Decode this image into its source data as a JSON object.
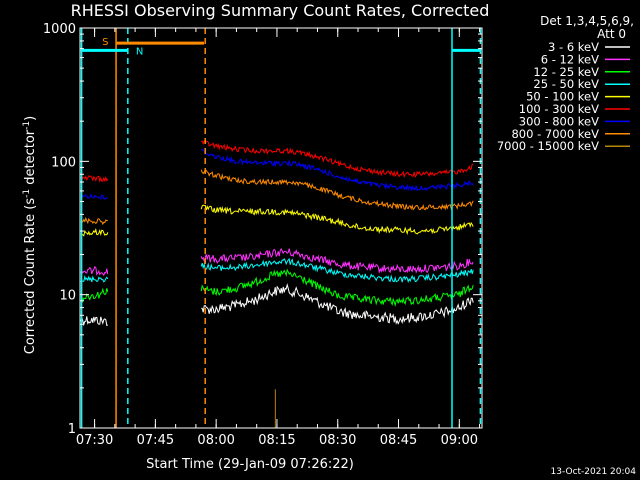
{
  "chart_data": {
    "type": "line",
    "title": "RHESSI Observing Summary Count Rates, Corrected",
    "xlabel": "Start Time (29-Jan-09 07:26:22)",
    "ylabel_main": "Corrected Count Rate (s",
    "ylabel_sup1": "-1",
    "ylabel_mid": " detector",
    "ylabel_sup2": "-1",
    "ylabel_end": ")",
    "yscale": "log",
    "ylim": [
      1,
      1000
    ],
    "xlim_min": [
      446.4,
      545.6
    ],
    "x_ticks": [
      {
        "label": "07:30",
        "min": 450
      },
      {
        "label": "07:45",
        "min": 465
      },
      {
        "label": "08:00",
        "min": 480
      },
      {
        "label": "08:15",
        "min": 495
      },
      {
        "label": "08:30",
        "min": 510
      },
      {
        "label": "08:45",
        "min": 525
      },
      {
        "label": "09:00",
        "min": 540
      }
    ],
    "y_ticks": [
      {
        "label": "1",
        "value": 1
      },
      {
        "label": "10",
        "value": 10
      },
      {
        "label": "100",
        "value": 100
      },
      {
        "label": "1000",
        "value": 1000
      }
    ],
    "legend_header": [
      "Det 1,3,4,5,6,9,",
      "Att 0"
    ],
    "series": [
      {
        "name": "3 - 6 keV",
        "color": "#ffffff",
        "seg1": {
          "x": [
            446.6,
            449,
            451,
            453.5
          ],
          "y": [
            6.5,
            6.5,
            6.4,
            6.3
          ]
        },
        "seg2": {
          "x": [
            476.3,
            480,
            485,
            490,
            494,
            497,
            500,
            505,
            510,
            515,
            520,
            525,
            530,
            535,
            540,
            543.5
          ],
          "y": [
            7.8,
            7.8,
            8.3,
            9.2,
            10.5,
            11,
            10.3,
            8.8,
            7.5,
            7,
            6.8,
            6.6,
            6.8,
            7.2,
            7.9,
            9.5
          ]
        }
      },
      {
        "name": "6 - 12 keV",
        "color": "#ff33ff",
        "seg1": {
          "x": [
            446.6,
            449,
            451,
            453.5
          ],
          "y": [
            15,
            15,
            15.2,
            14.8
          ]
        },
        "seg2": {
          "x": [
            476.3,
            480,
            485,
            490,
            494,
            497,
            500,
            505,
            510,
            515,
            520,
            525,
            530,
            535,
            540,
            543.5
          ],
          "y": [
            19,
            18.5,
            18.8,
            19.2,
            20.5,
            21,
            20.3,
            18.5,
            17,
            16.2,
            15.8,
            15.5,
            15.6,
            16,
            16.5,
            18
          ]
        }
      },
      {
        "name": "12 - 25 keV",
        "color": "#00ff00",
        "seg1": {
          "x": [
            446.6,
            449,
            451,
            453.5
          ],
          "y": [
            9.5,
            9.8,
            10,
            11
          ]
        },
        "seg2": {
          "x": [
            476.3,
            480,
            485,
            490,
            494,
            497,
            500,
            505,
            510,
            515,
            520,
            525,
            530,
            535,
            540,
            543.5
          ],
          "y": [
            11,
            10.5,
            11.2,
            12.5,
            14,
            14.5,
            13.7,
            11.5,
            9.8,
            9.3,
            9,
            8.9,
            9.1,
            9.5,
            10,
            12
          ]
        }
      },
      {
        "name": "25 - 50 keV",
        "color": "#00ffff",
        "seg1": {
          "x": [
            446.6,
            449,
            451,
            453.5
          ],
          "y": [
            13,
            13,
            13.2,
            13
          ]
        },
        "seg2": {
          "x": [
            476.3,
            480,
            485,
            490,
            494,
            497,
            500,
            505,
            510,
            515,
            520,
            525,
            530,
            535,
            540,
            543.5
          ],
          "y": [
            16.5,
            15.8,
            16,
            16.7,
            17.5,
            17.8,
            17.2,
            15.8,
            14.5,
            13.8,
            13.4,
            13,
            13.2,
            13.6,
            14.2,
            15
          ]
        }
      },
      {
        "name": "50 - 100 keV",
        "color": "#ffff00",
        "seg1": {
          "x": [
            446.6,
            449,
            451,
            453.5
          ],
          "y": [
            29,
            29,
            29.5,
            29
          ]
        },
        "seg2": {
          "x": [
            476.3,
            480,
            485,
            490,
            494,
            497,
            500,
            505,
            510,
            515,
            520,
            525,
            530,
            535,
            540,
            543.5
          ],
          "y": [
            45,
            43,
            42,
            42,
            42,
            41.5,
            40.5,
            38,
            35,
            32,
            31,
            30.5,
            30,
            30.5,
            32,
            34
          ]
        }
      },
      {
        "name": "100 - 300 keV",
        "color": "#ff0000",
        "seg1": {
          "x": [
            446.6,
            449,
            451,
            453.5
          ],
          "y": [
            75,
            75,
            74,
            73
          ]
        },
        "seg2": {
          "x": [
            476.3,
            480,
            485,
            490,
            494,
            497,
            500,
            505,
            510,
            515,
            520,
            525,
            530,
            535,
            540,
            543.5
          ],
          "y": [
            140,
            130,
            123,
            120,
            120,
            120,
            117,
            108,
            96,
            88,
            83,
            80,
            80,
            81,
            84,
            92
          ]
        }
      },
      {
        "name": "300 - 800 keV",
        "color": "#0000ff",
        "seg1": {
          "x": [
            446.6,
            449,
            451,
            453.5
          ],
          "y": [
            55,
            55,
            54,
            53
          ]
        },
        "seg2": {
          "x": [
            476.3,
            480,
            485,
            490,
            494,
            497,
            500,
            505,
            510,
            515,
            520,
            525,
            530,
            535,
            540,
            543.5
          ],
          "y": [
            120,
            108,
            100,
            97,
            97,
            97,
            95,
            87,
            77,
            70,
            66,
            64,
            63,
            64,
            66,
            70
          ]
        }
      },
      {
        "name": "800 - 7000 keV",
        "color": "#ff8c00",
        "seg1": {
          "x": [
            446.6,
            449,
            451,
            453.5
          ],
          "y": [
            36,
            36,
            35.5,
            35
          ]
        },
        "seg2": {
          "x": [
            476.3,
            480,
            485,
            490,
            494,
            497,
            500,
            505,
            510,
            515,
            520,
            525,
            530,
            535,
            540,
            543.5
          ],
          "y": [
            85,
            78,
            72,
            70,
            70,
            70,
            69,
            63,
            56,
            51,
            48,
            46,
            45,
            45.5,
            46.5,
            49
          ]
        }
      },
      {
        "name": "7000 - 15000 keV",
        "color": "#b8860b",
        "seg1": {
          "x": [],
          "y": []
        },
        "seg2": {
          "x": [],
          "y": []
        }
      }
    ],
    "spike": {
      "color": "#b8860b",
      "x": 494.6,
      "ylow": 1,
      "yhigh": 1.95
    },
    "flag_lines": {
      "saa_label": "S",
      "night_label": "N",
      "saa_color": "#ff8c00",
      "night_color": "#00ffff",
      "saa_bar": {
        "x": [
          455.3,
          477.0
        ],
        "y": 770
      },
      "night_bars": [
        {
          "x": [
            446.6,
            458.2
          ],
          "y": 680
        },
        {
          "x": [
            538.2,
            545.3
          ],
          "y": 680
        }
      ],
      "solid_saa": [
        455.3
      ],
      "dashed_saa": [
        477.3
      ],
      "solid_night": [
        446.8,
        538.2
      ],
      "dashed_night": [
        458.2,
        545.2
      ]
    },
    "footer_date": "13-Oct-2021 20:04"
  }
}
